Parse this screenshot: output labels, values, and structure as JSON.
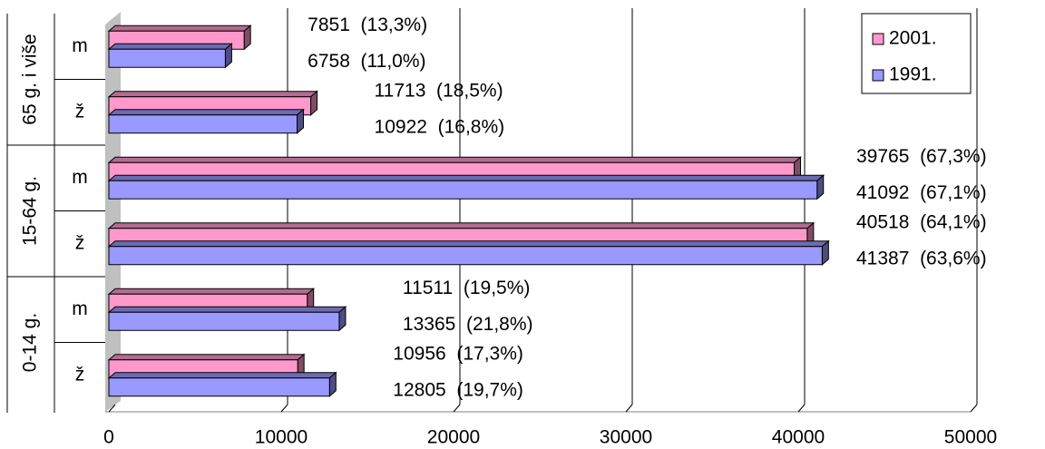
{
  "chart_data": {
    "type": "bar",
    "orientation": "horizontal",
    "groups": [
      "65 g. i više",
      "15-64 g.",
      "0-14 g."
    ],
    "categories": [
      "m",
      "ž",
      "m",
      "ž",
      "m",
      "ž"
    ],
    "series": [
      {
        "name": "2001.",
        "color": "#ff99cc",
        "values": [
          7851,
          11713,
          39765,
          40518,
          11511,
          10956
        ],
        "value_labels": [
          "7851  (13,3%)",
          "11713  (18,5%)",
          "39765  (67,3%)",
          "40518  (64,1%)",
          "11511  (19,5%)",
          "10956  (17,3%)"
        ]
      },
      {
        "name": "1991.",
        "color": "#9999ff",
        "values": [
          6758,
          10922,
          41092,
          41387,
          13365,
          12805
        ],
        "value_labels": [
          "6758  (11,0%)",
          "10922  (16,8%)",
          "41092  (67,1%)",
          "41387  (63,6%)",
          "13365  (21,8%)",
          "12805  (19,7%)"
        ]
      }
    ],
    "xlim": [
      0,
      50000
    ],
    "xticks": [
      0,
      10000,
      20000,
      30000,
      40000,
      50000
    ],
    "grid": true,
    "legend": "top-right"
  }
}
